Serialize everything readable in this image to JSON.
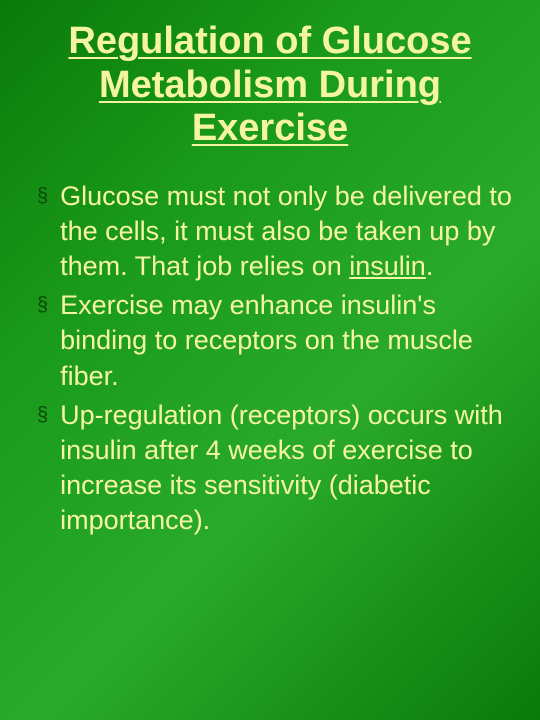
{
  "slide": {
    "title": "Regulation of Glucose Metabolism During Exercise",
    "title_color": "#f5f5a0",
    "title_fontsize": 38,
    "background_gradient": [
      "#0a7a0a",
      "#1a9a1a",
      "#2aaa2a",
      "#0a7a0a"
    ],
    "bullet_color": "#0a4a0a",
    "text_color": "#f5f5a0",
    "body_fontsize": 27,
    "bullets": [
      {
        "pre": "Glucose must not only be delivered to the cells, it must also be taken up by them.  That job relies on ",
        "underlined": "insulin",
        "post": "."
      },
      {
        "pre": "Exercise may enhance insulin's binding to receptors on the muscle fiber.",
        "underlined": "",
        "post": ""
      },
      {
        "pre": "Up-regulation (receptors) occurs with insulin after 4 weeks of exercise to increase its sensitivity (diabetic importance).",
        "underlined": "",
        "post": ""
      }
    ]
  }
}
